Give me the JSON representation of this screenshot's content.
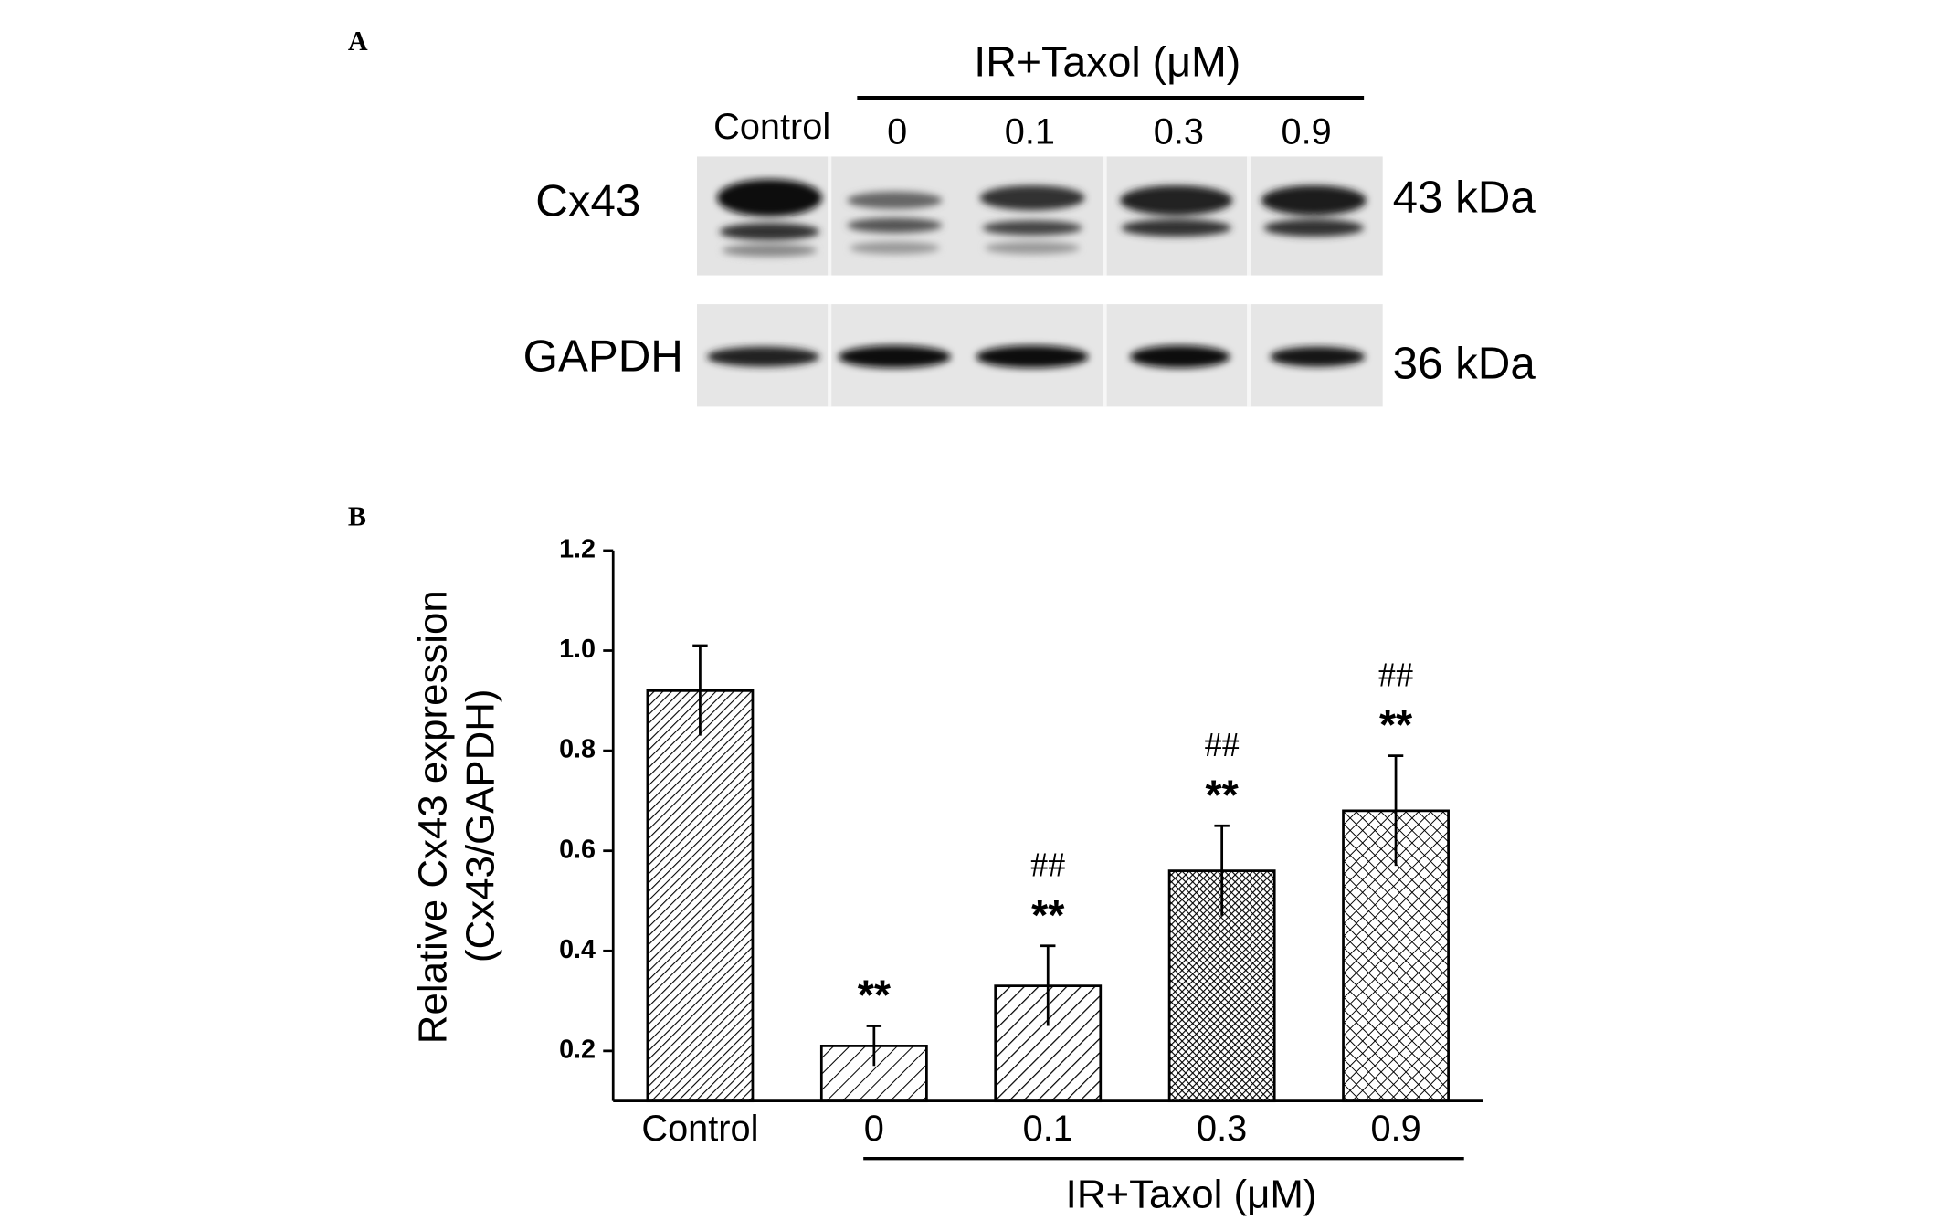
{
  "panel_labels": [
    "A",
    "B"
  ],
  "blot": {
    "group_label": "IR+Taxol (μM)",
    "lanes": [
      "Control",
      "0",
      "0.1",
      "0.3",
      "0.9"
    ],
    "rows": [
      {
        "name": "Cx43",
        "size": "43 kDa"
      },
      {
        "name": "GAPDH",
        "size": "36 kDa"
      }
    ]
  },
  "chart_data": {
    "type": "bar",
    "ylabel": [
      "Relative Cx43 expression",
      "(Cx43/GAPDH)"
    ],
    "group_label": "IR+Taxol (μM)",
    "categories": [
      "Control",
      "0",
      "0.1",
      "0.3",
      "0.9"
    ],
    "values": [
      0.92,
      0.21,
      0.33,
      0.56,
      0.68
    ],
    "errors": [
      0.09,
      0.04,
      0.08,
      0.09,
      0.11
    ],
    "significance": [
      null,
      "**",
      "**",
      "**",
      "**"
    ],
    "significance2": [
      null,
      null,
      "##",
      "##",
      "##"
    ],
    "hatches": [
      "hatch-dense",
      "hatch-light",
      "hatch-sparse",
      "cross-dense",
      "cross"
    ],
    "color": "#000000",
    "ylim": [
      0.1,
      1.2
    ],
    "yticks": [
      0.2,
      0.4,
      0.6,
      0.8,
      {
        "value": 1,
        "label": "1.0"
      },
      1.2
    ]
  }
}
